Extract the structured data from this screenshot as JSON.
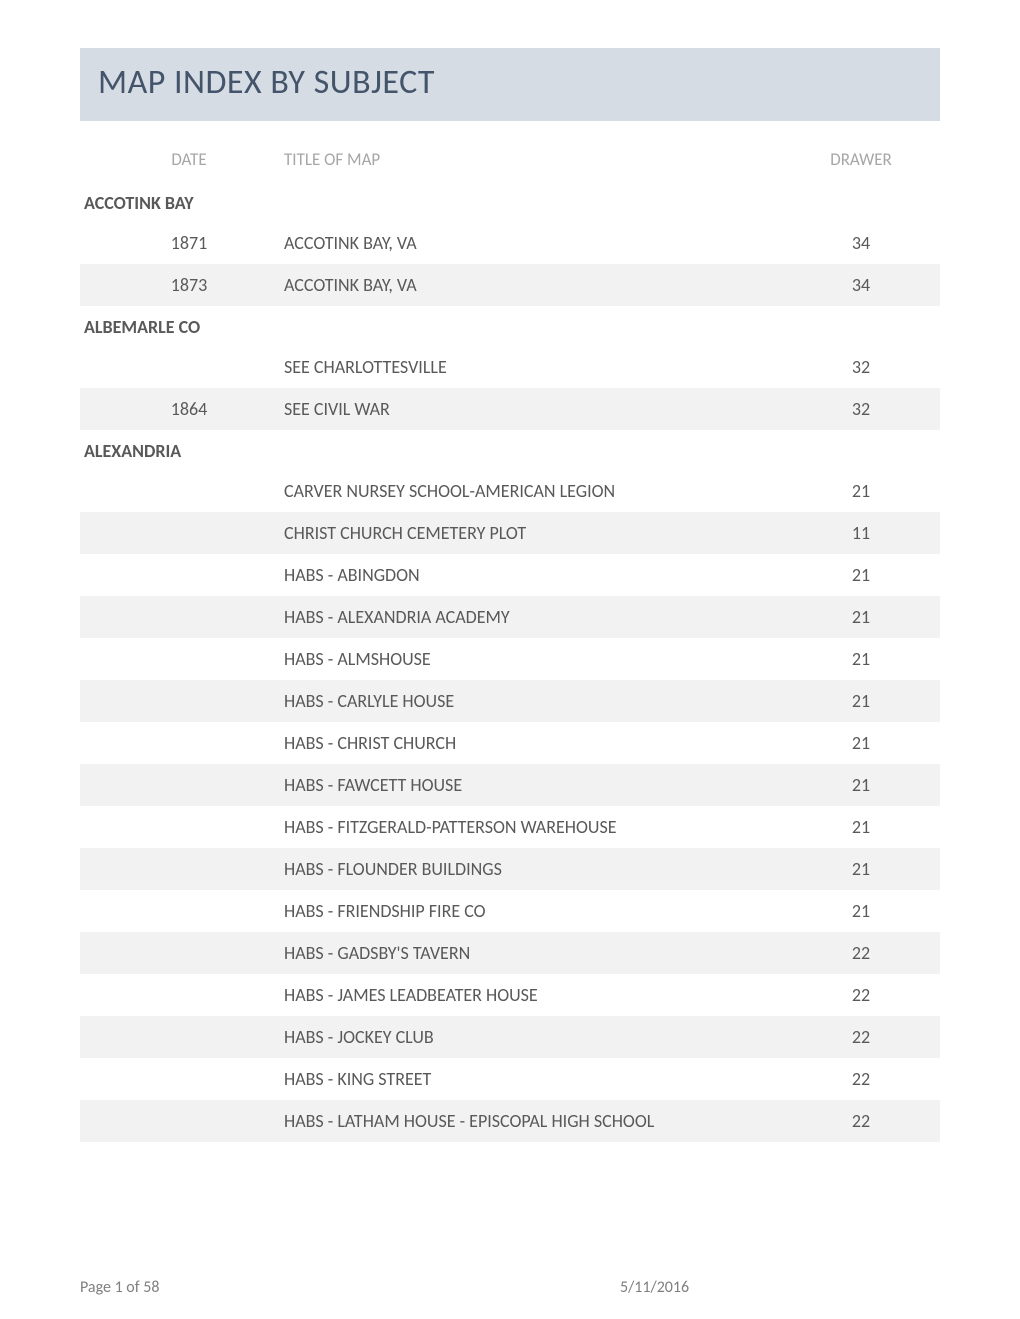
{
  "page": {
    "title": "MAP INDEX BY SUBJECT",
    "title_band_bg": "#d5dce4",
    "title_color": "#44546a",
    "title_fontsize": 34,
    "body_text_color": "#595959",
    "header_text_color": "#a6a6a6",
    "row_fontsize": 18,
    "shaded_row_bg": "#f2f2f2",
    "background_color": "#ffffff"
  },
  "columns": {
    "date": "DATE",
    "title": "TITLE OF MAP",
    "drawer": "DRAWER"
  },
  "sections": [
    {
      "heading": "ACCOTINK BAY",
      "rows": [
        {
          "date": "1871",
          "title": "ACCOTINK BAY, VA",
          "drawer": "34",
          "shaded": false
        },
        {
          "date": "1873",
          "title": "ACCOTINK BAY, VA",
          "drawer": "34",
          "shaded": true
        }
      ]
    },
    {
      "heading": "ALBEMARLE CO",
      "rows": [
        {
          "date": "",
          "title": "SEE CHARLOTTESVILLE",
          "drawer": "32",
          "shaded": false
        },
        {
          "date": "1864",
          "title": "SEE CIVIL WAR",
          "drawer": "32",
          "shaded": true
        }
      ]
    },
    {
      "heading": "ALEXANDRIA",
      "rows": [
        {
          "date": "",
          "title": "CARVER NURSEY SCHOOL-AMERICAN LEGION",
          "drawer": "21",
          "shaded": false
        },
        {
          "date": "",
          "title": "CHRIST CHURCH CEMETERY PLOT",
          "drawer": "11",
          "shaded": true
        },
        {
          "date": "",
          "title": "HABS - ABINGDON",
          "drawer": "21",
          "shaded": false
        },
        {
          "date": "",
          "title": "HABS - ALEXANDRIA ACADEMY",
          "drawer": "21",
          "shaded": true
        },
        {
          "date": "",
          "title": "HABS - ALMSHOUSE",
          "drawer": "21",
          "shaded": false
        },
        {
          "date": "",
          "title": "HABS - CARLYLE HOUSE",
          "drawer": "21",
          "shaded": true
        },
        {
          "date": "",
          "title": "HABS - CHRIST CHURCH",
          "drawer": "21",
          "shaded": false
        },
        {
          "date": "",
          "title": "HABS - FAWCETT HOUSE",
          "drawer": "21",
          "shaded": true
        },
        {
          "date": "",
          "title": "HABS - FITZGERALD-PATTERSON WAREHOUSE",
          "drawer": "21",
          "shaded": false
        },
        {
          "date": "",
          "title": "HABS - FLOUNDER BUILDINGS",
          "drawer": "21",
          "shaded": true
        },
        {
          "date": "",
          "title": "HABS - FRIENDSHIP FIRE CO",
          "drawer": "21",
          "shaded": false
        },
        {
          "date": "",
          "title": "HABS - GADSBY'S TAVERN",
          "drawer": "22",
          "shaded": true
        },
        {
          "date": "",
          "title": "HABS - JAMES LEADBEATER HOUSE",
          "drawer": "22",
          "shaded": false
        },
        {
          "date": "",
          "title": "HABS - JOCKEY CLUB",
          "drawer": "22",
          "shaded": true
        },
        {
          "date": "",
          "title": "HABS - KING STREET",
          "drawer": "22",
          "shaded": false
        },
        {
          "date": "",
          "title": "HABS - LATHAM HOUSE - EPISCOPAL HIGH SCHOOL",
          "drawer": "22",
          "shaded": true
        }
      ]
    }
  ],
  "footer": {
    "page_label": "Page 1 of 58",
    "date_stamp": "5/11/2016"
  }
}
